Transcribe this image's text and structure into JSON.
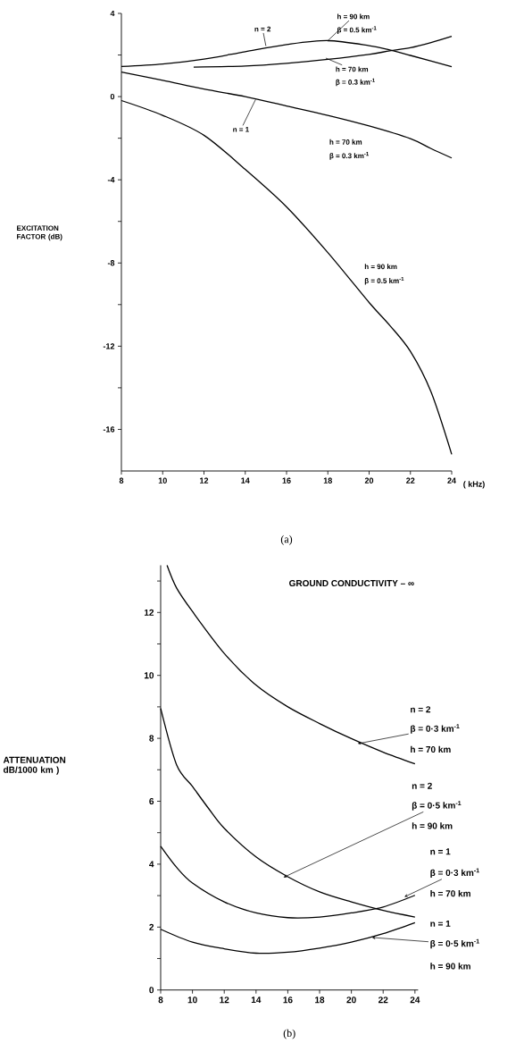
{
  "chart_data": [
    {
      "type": "line",
      "xlabel": "( kHz)",
      "ylabel": "EXCITATION FACTOR (dB)",
      "xlim": [
        8,
        24
      ],
      "ylim": [
        -18,
        4
      ],
      "xticks": [
        8,
        10,
        12,
        14,
        16,
        18,
        20,
        22,
        24
      ],
      "yticks": [
        4,
        {
          "value": 2,
          "label": null
        },
        0,
        {
          "value": -2,
          "label": null
        },
        -4,
        {
          "value": -6,
          "label": null
        },
        -8,
        {
          "value": -10,
          "label": null
        },
        -12,
        {
          "value": -14,
          "label": null
        },
        -16
      ],
      "series": [
        {
          "color": "#000000",
          "x": [
            8,
            10,
            12,
            14,
            16,
            18,
            20,
            21,
            22,
            24
          ],
          "values": [
            1.45,
            1.57,
            1.8,
            2.16,
            2.5,
            2.69,
            2.45,
            2.24,
            1.98,
            1.44
          ]
        },
        {
          "color": "#000000",
          "x": [
            11.5,
            14,
            16,
            18,
            20,
            21,
            22,
            23,
            24
          ],
          "values": [
            1.42,
            1.47,
            1.6,
            1.79,
            2.03,
            2.2,
            2.35,
            2.6,
            2.9
          ]
        },
        {
          "color": "#000000",
          "x": [
            8,
            10,
            12,
            14,
            16,
            18,
            20,
            22,
            23,
            24
          ],
          "values": [
            1.18,
            0.78,
            0.36,
            0.0,
            -0.45,
            -0.9,
            -1.41,
            -2.02,
            -2.5,
            -2.95
          ]
        },
        {
          "color": "#000000",
          "x": [
            8,
            10,
            12,
            14,
            16,
            18,
            20,
            21,
            22,
            23,
            24
          ],
          "values": [
            -0.19,
            -0.9,
            -1.86,
            -3.5,
            -5.3,
            -7.5,
            -9.9,
            -11.0,
            -12.25,
            -14.2,
            -17.2
          ]
        }
      ],
      "annotations": [
        {
          "text": "n = 2",
          "x": 15.0,
          "y": 2.43
        },
        {
          "text": "h = 90 km",
          "x": 18.0,
          "y": 2.69
        },
        "β = 0.5 km$^{-1}$",
        {
          "text": "h = 70 km",
          "x": 17.9,
          "y": 1.85
        },
        "β = 0.3 km$^{-1}$",
        {
          "text": "n = 1",
          "x": 14.5,
          "y": -0.14
        },
        "h = 70 km",
        "β = 0.3 km$^{-1}$",
        "h = 90 km",
        "β = 0.5 km$^{-1}$",
        "(a)"
      ]
    },
    {
      "type": "line",
      "title": "GROUND CONDUCTIVITY – ∞",
      "ylabel": "ATTENUATION dB/1000 km )",
      "xlim": [
        8,
        24.2
      ],
      "ylim": [
        0,
        13.5
      ],
      "xticks": [
        8,
        10,
        12,
        14,
        16,
        18,
        20,
        22,
        24
      ],
      "yticks": [
        0,
        {
          "value": 1,
          "label": null
        },
        2,
        {
          "value": 3,
          "label": null
        },
        4,
        {
          "value": 5,
          "label": null
        },
        6,
        {
          "value": 7,
          "label": null
        },
        8,
        {
          "value": 9,
          "label": null
        },
        10,
        {
          "value": 11,
          "label": null
        },
        12,
        {
          "value": 13,
          "label": null
        }
      ],
      "series": [
        {
          "color": "#000000",
          "x": [
            8.4,
            9,
            10,
            12,
            14,
            16,
            18,
            20,
            22,
            24
          ],
          "values": [
            13.5,
            12.78,
            12.03,
            10.7,
            9.69,
            9.0,
            8.47,
            7.99,
            7.56,
            7.19
          ]
        },
        {
          "color": "#000000",
          "x": [
            8,
            9,
            10,
            11,
            12,
            14,
            16,
            18,
            20,
            22,
            24
          ],
          "values": [
            8.95,
            7.16,
            6.47,
            5.78,
            5.14,
            4.23,
            3.6,
            3.12,
            2.8,
            2.53,
            2.32
          ]
        },
        {
          "color": "#000000",
          "x": [
            8,
            9,
            10,
            12,
            14,
            16,
            18,
            20,
            22,
            24
          ],
          "values": [
            4.57,
            3.9,
            3.4,
            2.8,
            2.45,
            2.3,
            2.32,
            2.45,
            2.64,
            3.01
          ]
        },
        {
          "color": "#000000",
          "x": [
            8,
            10,
            12,
            14,
            16,
            18,
            20,
            22,
            24
          ],
          "values": [
            1.93,
            1.52,
            1.31,
            1.17,
            1.2,
            1.33,
            1.52,
            1.79,
            2.14
          ]
        }
      ],
      "annotations": [
        "n = 2",
        {
          "text": "β = 0·3 km$^{-1}$",
          "x": 20.4,
          "y": 7.83
        },
        "h = 70 km",
        "n = 2",
        {
          "text": "β = 0·5 km$^{-1}$",
          "x": 15.73,
          "y": 3.58
        },
        "h = 90 km",
        "n = 1",
        {
          "text": "β = 0·3 km$^{-1}$",
          "x": 23.34,
          "y": 2.96
        },
        "h = 70 km",
        "n = 1",
        {
          "text": "β = 0·5 km$^{-1}$",
          "x": 21.3,
          "y": 1.67
        },
        "h = 90 km",
        "(b)"
      ]
    }
  ]
}
